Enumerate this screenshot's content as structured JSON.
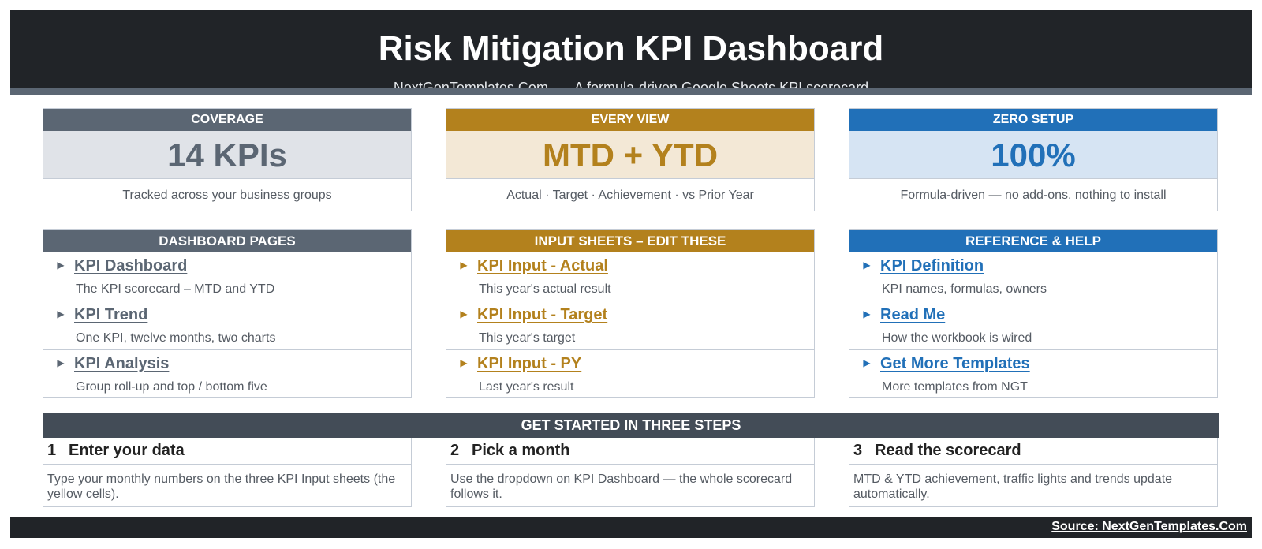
{
  "header": {
    "title": "Risk Mitigation KPI Dashboard",
    "site": "NextGenTemplates.Com",
    "tagline": "A formula-driven Google Sheets KPI scorecard"
  },
  "colors": {
    "header_bg": "#212428",
    "slate": "#5b6673",
    "gold": "#b3811d",
    "blue": "#2170b8",
    "steps_header": "#434c57"
  },
  "cards": [
    {
      "label": "COVERAGE",
      "value": "14 KPIs",
      "desc": "Tracked across your business groups"
    },
    {
      "label": "EVERY VIEW",
      "value": "MTD + YTD",
      "desc": "Actual · Target · Achievement · vs Prior Year"
    },
    {
      "label": "ZERO SETUP",
      "value": "100%",
      "desc": "Formula-driven — no add-ons, nothing to install"
    }
  ],
  "panels": [
    {
      "title": "DASHBOARD PAGES",
      "items": [
        {
          "icon": "play-arrow-icon",
          "link": "KPI Dashboard",
          "desc": "The KPI scorecard – MTD and YTD"
        },
        {
          "icon": "play-arrow-icon",
          "link": "KPI Trend",
          "desc": "One KPI, twelve months, two charts"
        },
        {
          "icon": "play-arrow-icon",
          "link": "KPI Analysis",
          "desc": "Group roll-up and top / bottom five"
        }
      ]
    },
    {
      "title": "INPUT SHEETS – EDIT THESE",
      "items": [
        {
          "icon": "play-arrow-icon",
          "link": "KPI Input - Actual",
          "desc": "This year's actual result"
        },
        {
          "icon": "play-arrow-icon",
          "link": "KPI Input - Target",
          "desc": "This year's target"
        },
        {
          "icon": "play-arrow-icon",
          "link": "KPI Input - PY",
          "desc": "Last year's result"
        }
      ]
    },
    {
      "title": "REFERENCE & HELP",
      "items": [
        {
          "icon": "play-arrow-icon",
          "link": "KPI Definition",
          "desc": "KPI names, formulas, owners"
        },
        {
          "icon": "play-arrow-icon",
          "link": "Read Me",
          "desc": "How the workbook is wired"
        },
        {
          "icon": "play-arrow-icon",
          "link": "Get More Templates",
          "desc": "More templates from NGT"
        }
      ]
    }
  ],
  "steps": {
    "title": "GET STARTED IN THREE STEPS",
    "items": [
      {
        "num": "1",
        "title": "Enter your data",
        "desc": "Type your monthly numbers on the three KPI Input sheets (the yellow cells)."
      },
      {
        "num": "2",
        "title": "Pick a month",
        "desc": "Use the dropdown on KPI Dashboard — the whole scorecard follows it."
      },
      {
        "num": "3",
        "title": "Read the scorecard",
        "desc": "MTD & YTD achievement, traffic lights and trends update automatically."
      }
    ]
  },
  "footer": {
    "source": "Source: NextGenTemplates.Com"
  }
}
